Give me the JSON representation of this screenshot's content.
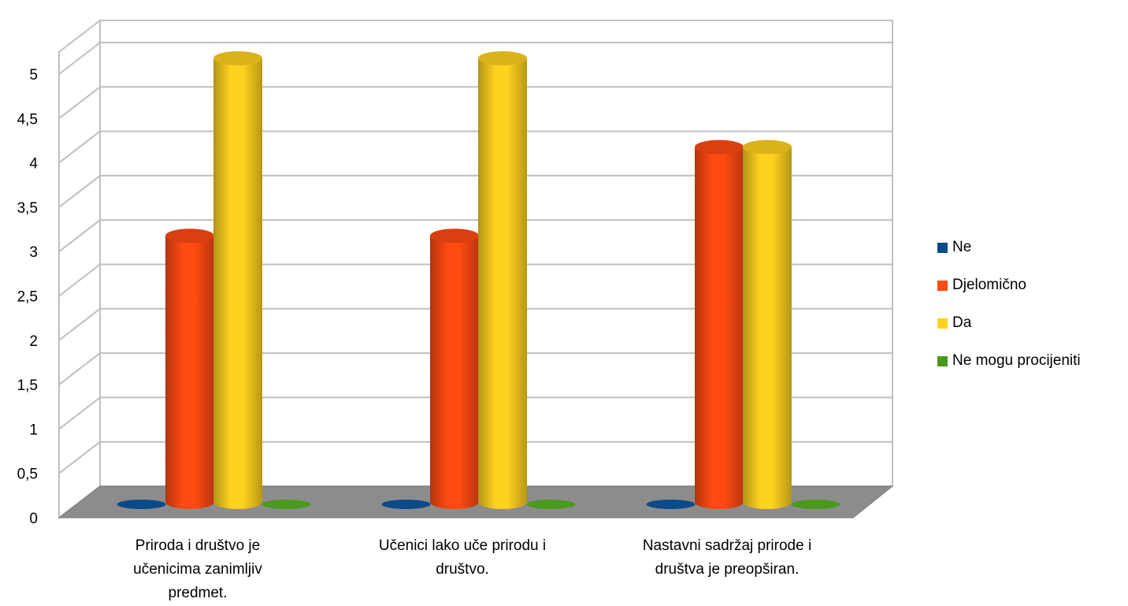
{
  "chart_data": {
    "type": "bar",
    "categories": [
      [
        "Priroda i društvo je",
        "učenicima zanimljiv",
        "predmet."
      ],
      [
        "Učenici lako uče prirodu i",
        "društvo."
      ],
      [
        "Nastavni sadržaj prirode i",
        "društva je preopširan."
      ]
    ],
    "series": [
      {
        "name": "Ne",
        "values": [
          0,
          0,
          0
        ],
        "color": "#0B4A88"
      },
      {
        "name": "Djelomično",
        "values": [
          3,
          3,
          4
        ],
        "color": "#FF4A12"
      },
      {
        "name": "Da",
        "values": [
          5,
          5,
          4
        ],
        "color": "#FFD21F"
      },
      {
        "name": "Ne mogu procijeniti",
        "values": [
          0,
          0,
          0
        ],
        "color": "#4A9A1E"
      }
    ],
    "yticks": [
      "0",
      "0,5",
      "1",
      "1,5",
      "2",
      "2,5",
      "3",
      "3,5",
      "4",
      "4,5",
      "5"
    ],
    "ylim": [
      0,
      5.25
    ],
    "grid": true,
    "legend_position": "right"
  }
}
